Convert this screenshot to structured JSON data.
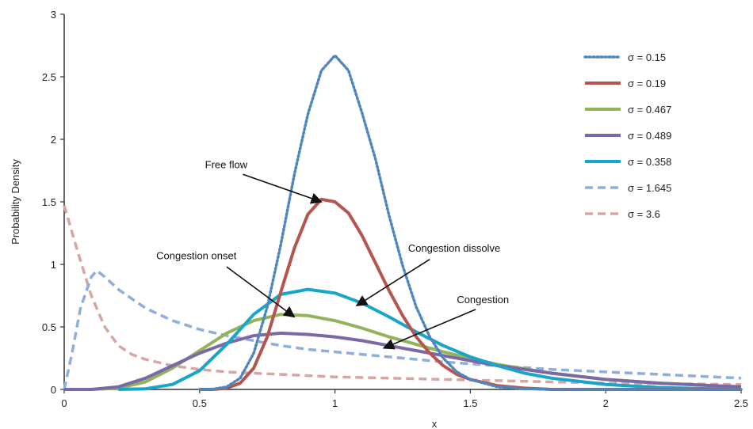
{
  "chart_data": {
    "type": "line",
    "xlabel": "x",
    "ylabel": "Probability Density",
    "xlim": [
      0,
      2.5
    ],
    "ylim": [
      0,
      3
    ],
    "x_ticks": [
      "0",
      "0.5",
      "1",
      "1.5",
      "2",
      "2.5"
    ],
    "y_ticks": [
      "0",
      "0.5",
      "1",
      "1.5",
      "2",
      "2.5",
      "3"
    ],
    "grid": false,
    "legend_position": "top-right",
    "series": [
      {
        "name": "σ = 0.15",
        "color": "#4f86c0",
        "dash": "dotted",
        "x": [
          0.5,
          0.55,
          0.6,
          0.65,
          0.7,
          0.75,
          0.8,
          0.85,
          0.9,
          0.95,
          1.0,
          1.05,
          1.1,
          1.15,
          1.2,
          1.25,
          1.3,
          1.35,
          1.4,
          1.45,
          1.5,
          1.6,
          1.7,
          1.8,
          2.0,
          2.2,
          2.5
        ],
        "y": [
          0.0,
          0.003,
          0.02,
          0.09,
          0.29,
          0.66,
          1.16,
          1.72,
          2.2,
          2.55,
          2.67,
          2.55,
          2.21,
          1.84,
          1.39,
          0.99,
          0.66,
          0.42,
          0.25,
          0.14,
          0.08,
          0.02,
          0.005,
          0.0,
          0.0,
          0.0,
          0.0
        ]
      },
      {
        "name": "σ = 0.19",
        "color": "#b5554f",
        "dash": "solid",
        "x": [
          0.5,
          0.55,
          0.6,
          0.65,
          0.7,
          0.75,
          0.8,
          0.85,
          0.9,
          0.95,
          1.0,
          1.05,
          1.1,
          1.15,
          1.2,
          1.25,
          1.3,
          1.35,
          1.4,
          1.45,
          1.5,
          1.6,
          1.7,
          1.8,
          2.0,
          2.5
        ],
        "y": [
          0.0,
          0.0,
          0.01,
          0.05,
          0.17,
          0.42,
          0.78,
          1.13,
          1.4,
          1.52,
          1.5,
          1.41,
          1.23,
          1.01,
          0.79,
          0.59,
          0.42,
          0.29,
          0.19,
          0.12,
          0.08,
          0.03,
          0.01,
          0.0,
          0.0,
          0.0
        ]
      },
      {
        "name": "σ = 0.467",
        "color": "#93b35a",
        "dash": "solid",
        "x": [
          0.0,
          0.1,
          0.2,
          0.3,
          0.4,
          0.5,
          0.6,
          0.7,
          0.8,
          0.9,
          1.0,
          1.1,
          1.2,
          1.3,
          1.4,
          1.5,
          1.6,
          1.8,
          2.0,
          2.2,
          2.5
        ],
        "y": [
          0.0,
          0.0,
          0.01,
          0.06,
          0.17,
          0.31,
          0.45,
          0.55,
          0.6,
          0.59,
          0.55,
          0.49,
          0.42,
          0.36,
          0.3,
          0.25,
          0.2,
          0.13,
          0.08,
          0.05,
          0.02
        ]
      },
      {
        "name": "σ = 0.489",
        "color": "#7b69a6",
        "dash": "solid",
        "x": [
          0.0,
          0.1,
          0.2,
          0.3,
          0.4,
          0.5,
          0.6,
          0.7,
          0.8,
          0.9,
          1.0,
          1.1,
          1.2,
          1.3,
          1.4,
          1.5,
          1.6,
          1.8,
          2.0,
          2.2,
          2.5
        ],
        "y": [
          0.0,
          0.0,
          0.02,
          0.09,
          0.19,
          0.29,
          0.37,
          0.43,
          0.45,
          0.44,
          0.42,
          0.39,
          0.35,
          0.31,
          0.27,
          0.23,
          0.19,
          0.13,
          0.08,
          0.05,
          0.02
        ]
      },
      {
        "name": "σ = 0.358",
        "color": "#17a6c9",
        "dash": "solid",
        "x": [
          0.2,
          0.3,
          0.4,
          0.5,
          0.6,
          0.7,
          0.8,
          0.9,
          1.0,
          1.1,
          1.2,
          1.3,
          1.4,
          1.5,
          1.6,
          1.7,
          1.8,
          2.0,
          2.2,
          2.5
        ],
        "y": [
          0.0,
          0.005,
          0.04,
          0.15,
          0.36,
          0.6,
          0.76,
          0.8,
          0.77,
          0.69,
          0.58,
          0.46,
          0.35,
          0.26,
          0.19,
          0.13,
          0.09,
          0.04,
          0.015,
          0.0
        ]
      },
      {
        "name": "σ = 1.645",
        "color": "#8eaedb",
        "dash": "dashed",
        "x": [
          0.0,
          0.03,
          0.06,
          0.1,
          0.12,
          0.15,
          0.2,
          0.3,
          0.4,
          0.5,
          0.6,
          0.7,
          0.8,
          0.9,
          1.0,
          1.2,
          1.4,
          1.6,
          1.8,
          2.0,
          2.2,
          2.5
        ],
        "y": [
          0.0,
          0.3,
          0.65,
          0.9,
          0.95,
          0.9,
          0.8,
          0.65,
          0.55,
          0.48,
          0.43,
          0.39,
          0.35,
          0.32,
          0.3,
          0.26,
          0.22,
          0.19,
          0.16,
          0.14,
          0.12,
          0.09
        ]
      },
      {
        "name": "σ = 3.6",
        "color": "#d6a6a3",
        "dash": "dashed",
        "x": [
          0.0,
          0.05,
          0.1,
          0.15,
          0.2,
          0.25,
          0.3,
          0.4,
          0.5,
          0.6,
          0.7,
          0.8,
          0.9,
          1.0,
          1.2,
          1.4,
          1.6,
          1.8,
          2.0,
          2.5
        ],
        "y": [
          1.47,
          1.1,
          0.75,
          0.5,
          0.35,
          0.28,
          0.24,
          0.19,
          0.16,
          0.14,
          0.13,
          0.12,
          0.11,
          0.1,
          0.09,
          0.08,
          0.07,
          0.06,
          0.05,
          0.04
        ]
      }
    ],
    "annotations": [
      {
        "text": "Free flow",
        "label_x": 0.52,
        "label_y": 1.77,
        "arrow_from": [
          0.66,
          1.72
        ],
        "arrow_to": [
          0.95,
          1.5
        ]
      },
      {
        "text": "Congestion onset",
        "label_x": 0.34,
        "label_y": 1.04,
        "arrow_from": [
          0.6,
          0.98
        ],
        "arrow_to": [
          0.85,
          0.58
        ]
      },
      {
        "text": "Congestion dissolve",
        "label_x": 1.27,
        "label_y": 1.1,
        "arrow_from": [
          1.35,
          1.04
        ],
        "arrow_to": [
          1.08,
          0.67
        ]
      },
      {
        "text": "Congestion",
        "label_x": 1.45,
        "label_y": 0.69,
        "arrow_from": [
          1.52,
          0.64
        ],
        "arrow_to": [
          1.18,
          0.33
        ]
      }
    ]
  }
}
